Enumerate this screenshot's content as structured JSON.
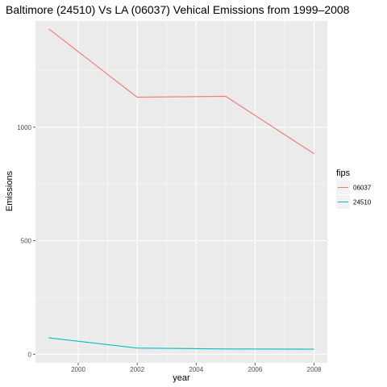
{
  "chart_data": {
    "type": "line",
    "title": "Baltimore (24510) Vs LA (06037) Vehical Emissions from 1999–2008",
    "xlabel": "year",
    "ylabel": "Emissions",
    "x": [
      1999,
      2002,
      2005,
      2008
    ],
    "xlim": [
      1998.55,
      2008.45
    ],
    "ylim": [
      -38,
      1468
    ],
    "x_ticks": [
      2000,
      2002,
      2004,
      2006,
      2008
    ],
    "x_tick_labels": [
      "2000",
      "2002",
      "2004",
      "2006",
      "2008"
    ],
    "y_ticks": [
      0,
      500,
      1000
    ],
    "y_tick_labels": [
      "0",
      "500",
      "1000"
    ],
    "grid": true,
    "legend": {
      "title": "fips",
      "position": "right"
    },
    "series": [
      {
        "name": "06037",
        "color": "#F8766D",
        "values": [
          1433,
          1132,
          1136,
          883
        ]
      },
      {
        "name": "24510",
        "color": "#00BFC4",
        "values": [
          72,
          27,
          23,
          22
        ]
      }
    ]
  }
}
